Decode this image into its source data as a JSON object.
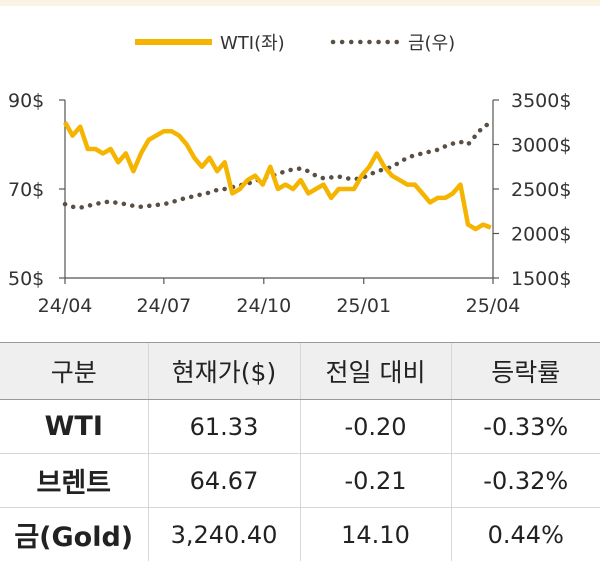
{
  "chart_data": {
    "type": "line",
    "legend": [
      {
        "name": "WTI(좌)",
        "color": "#f5b400",
        "style": "solid"
      },
      {
        "name": "금(우)",
        "color": "#5a4f45",
        "style": "dotted"
      }
    ],
    "x_tick_labels": [
      "24/04",
      "24/07",
      "24/10",
      "25/01",
      "25/04"
    ],
    "y_left": {
      "ylim": [
        50,
        90
      ],
      "tick_labels": [
        "90$",
        "70$",
        "50$"
      ]
    },
    "y_right": {
      "ylim": [
        1500,
        3500
      ],
      "tick_labels": [
        "3500$",
        "3000$",
        "2500$",
        "2000$",
        "1500$"
      ]
    },
    "series": [
      {
        "name": "WTI(좌)",
        "axis": "left",
        "color": "#f5b400",
        "x": [
          "2024-04-01",
          "2024-04-08",
          "2024-04-15",
          "2024-04-22",
          "2024-04-29",
          "2024-05-06",
          "2024-05-13",
          "2024-05-20",
          "2024-05-27",
          "2024-06-03",
          "2024-06-10",
          "2024-06-17",
          "2024-06-24",
          "2024-07-01",
          "2024-07-08",
          "2024-07-15",
          "2024-07-22",
          "2024-07-29",
          "2024-08-05",
          "2024-08-12",
          "2024-08-19",
          "2024-08-26",
          "2024-09-02",
          "2024-09-09",
          "2024-09-16",
          "2024-09-23",
          "2024-09-30",
          "2024-10-07",
          "2024-10-14",
          "2024-10-21",
          "2024-10-28",
          "2024-11-04",
          "2024-11-11",
          "2024-11-18",
          "2024-11-25",
          "2024-12-02",
          "2024-12-09",
          "2024-12-16",
          "2024-12-23",
          "2024-12-30",
          "2025-01-06",
          "2025-01-13",
          "2025-01-20",
          "2025-01-27",
          "2025-02-03",
          "2025-02-10",
          "2025-02-17",
          "2025-02-24",
          "2025-03-03",
          "2025-03-10",
          "2025-03-17",
          "2025-03-24",
          "2025-03-31",
          "2025-04-07",
          "2025-04-14",
          "2025-04-21",
          "2025-04-28"
        ],
        "values": [
          85,
          82,
          84,
          79,
          79,
          78,
          79,
          76,
          78,
          74,
          78,
          81,
          82,
          83,
          83,
          82,
          80,
          77,
          75,
          77,
          74,
          76,
          69,
          70,
          72,
          73,
          71,
          75,
          70,
          71,
          70,
          72,
          69,
          70,
          71,
          68,
          70,
          70,
          70,
          73,
          75,
          78,
          75,
          73,
          72,
          71,
          71,
          69,
          67,
          68,
          68,
          69,
          71,
          62,
          61,
          62,
          61.33
        ]
      },
      {
        "name": "금(우)",
        "axis": "right",
        "color": "#5a4f45",
        "x": [
          "2024-04-01",
          "2024-04-08",
          "2024-04-15",
          "2024-04-22",
          "2024-04-29",
          "2024-05-06",
          "2024-05-13",
          "2024-05-20",
          "2024-05-27",
          "2024-06-03",
          "2024-06-10",
          "2024-06-17",
          "2024-06-24",
          "2024-07-01",
          "2024-07-08",
          "2024-07-15",
          "2024-07-22",
          "2024-07-29",
          "2024-08-05",
          "2024-08-12",
          "2024-08-19",
          "2024-08-26",
          "2024-09-02",
          "2024-09-09",
          "2024-09-16",
          "2024-09-23",
          "2024-09-30",
          "2024-10-07",
          "2024-10-14",
          "2024-10-21",
          "2024-10-28",
          "2024-11-04",
          "2024-11-11",
          "2024-11-18",
          "2024-11-25",
          "2024-12-02",
          "2024-12-09",
          "2024-12-16",
          "2024-12-23",
          "2024-12-30",
          "2025-01-06",
          "2025-01-13",
          "2025-01-20",
          "2025-01-27",
          "2025-02-03",
          "2025-02-10",
          "2025-02-17",
          "2025-02-24",
          "2025-03-03",
          "2025-03-10",
          "2025-03-17",
          "2025-03-24",
          "2025-03-31",
          "2025-04-07",
          "2025-04-14",
          "2025-04-21",
          "2025-04-28"
        ],
        "values": [
          2330,
          2300,
          2290,
          2310,
          2330,
          2350,
          2360,
          2340,
          2330,
          2310,
          2300,
          2310,
          2320,
          2330,
          2350,
          2380,
          2400,
          2420,
          2440,
          2460,
          2490,
          2500,
          2520,
          2540,
          2560,
          2590,
          2620,
          2640,
          2670,
          2700,
          2720,
          2730,
          2700,
          2650,
          2620,
          2630,
          2640,
          2620,
          2610,
          2620,
          2660,
          2700,
          2720,
          2750,
          2800,
          2850,
          2880,
          2900,
          2920,
          2940,
          2980,
          3010,
          3030,
          3000,
          3100,
          3200,
          3240.4
        ]
      }
    ]
  },
  "table": {
    "headers": [
      "구분",
      "현재가($)",
      "전일 대비",
      "등락률"
    ],
    "rows": [
      {
        "name": "WTI",
        "price": "61.33",
        "change": "-0.20",
        "rate": "-0.33%"
      },
      {
        "name": "브렌트",
        "price": "64.67",
        "change": "-0.21",
        "rate": "-0.32%"
      },
      {
        "name": "금(Gold)",
        "price": "3,240.40",
        "change": "14.10",
        "rate": "0.44%"
      }
    ]
  }
}
